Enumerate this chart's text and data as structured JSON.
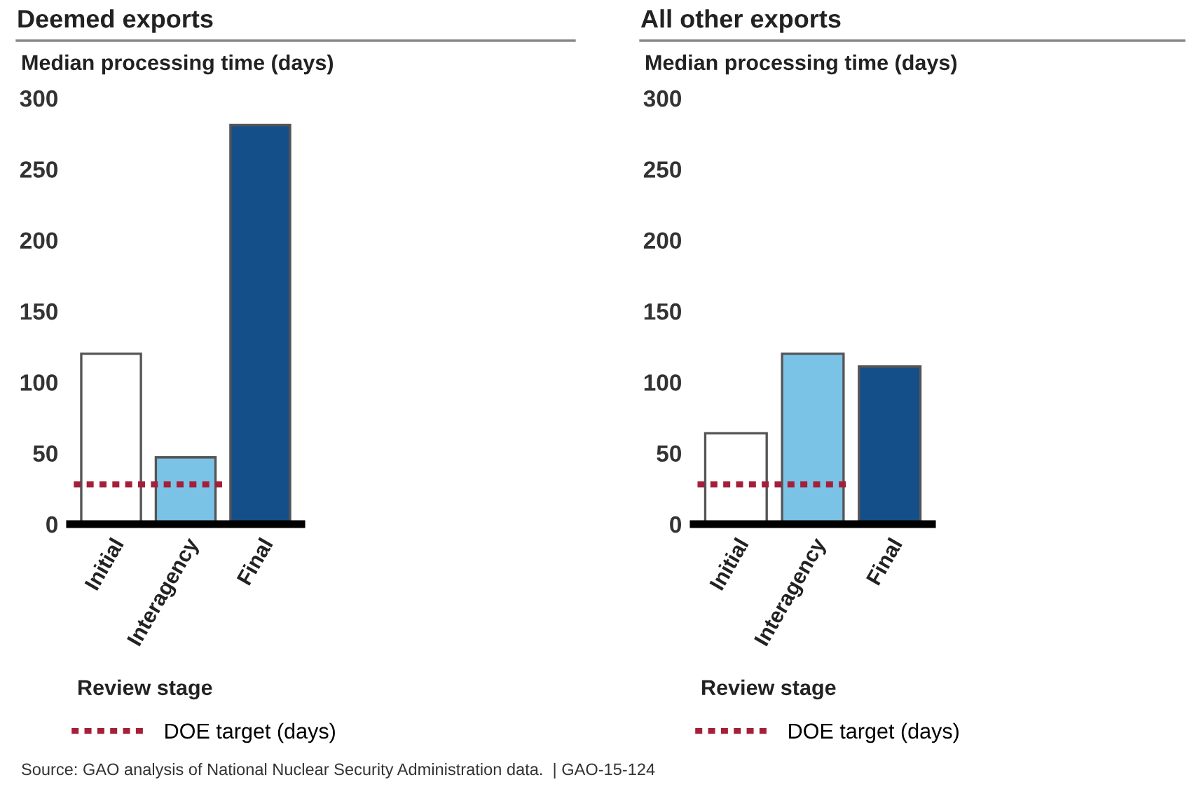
{
  "chart_data": [
    {
      "type": "bar",
      "title": "Deemed exports",
      "ylabel": "Median processing time (days)",
      "xlabel": "Review stage",
      "categories": [
        "Initial",
        "Interagency",
        "Final"
      ],
      "values": [
        120,
        47,
        281
      ],
      "colors": [
        "#ffffff",
        "#7bc3e6",
        "#154f8a"
      ],
      "ylim": [
        0,
        300
      ],
      "yticks": [
        0,
        50,
        100,
        150,
        200,
        250,
        300
      ],
      "grid": false,
      "legend": "bottom",
      "ref_lines": [
        {
          "axis": "y",
          "value": 28,
          "label": "DOE target (days)",
          "color": "#a3203a",
          "line_style": "dotted"
        }
      ]
    },
    {
      "type": "bar",
      "title": "All other exports",
      "ylabel": "Median processing time (days)",
      "xlabel": "Review stage",
      "categories": [
        "Initial",
        "Interagency",
        "Final"
      ],
      "values": [
        64,
        120,
        111
      ],
      "colors": [
        "#ffffff",
        "#7bc3e6",
        "#154f8a"
      ],
      "ylim": [
        0,
        300
      ],
      "yticks": [
        0,
        50,
        100,
        150,
        200,
        250,
        300
      ],
      "grid": false,
      "legend": "bottom",
      "ref_lines": [
        {
          "axis": "y",
          "value": 28,
          "label": "DOE target (days)",
          "color": "#a3203a",
          "line_style": "dotted"
        }
      ],
      "annotations": [
        "Source: GAO analysis of National Nuclear Security Administration data.  | GAO-15-124"
      ]
    }
  ]
}
